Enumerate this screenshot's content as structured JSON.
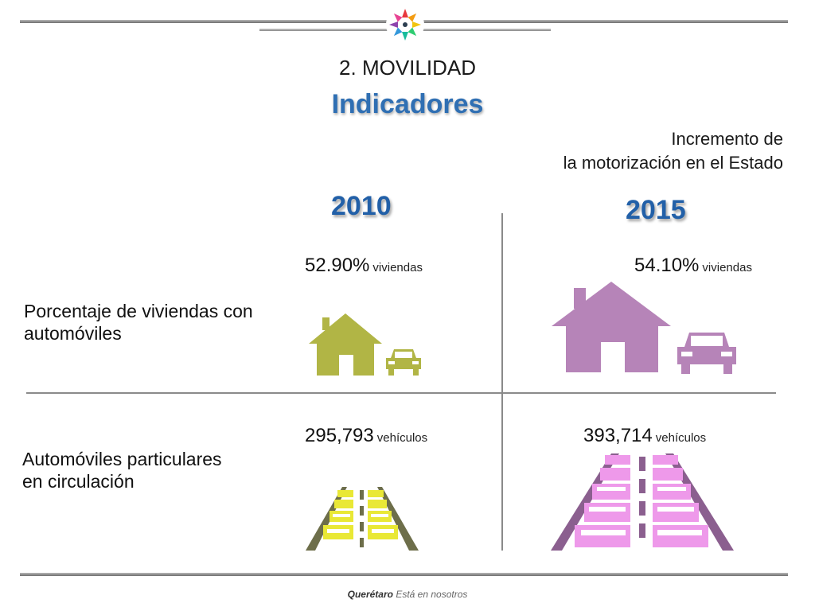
{
  "header": {
    "section": "2. MOVILIDAD",
    "title": "Indicadores",
    "subtitle_line1": "Incremento de",
    "subtitle_line2": "la motorización en el Estado"
  },
  "years": {
    "left": "2010",
    "right": "2015"
  },
  "rows": [
    {
      "label_line1": "Porcentaje de viviendas con",
      "label_line2": "automóviles",
      "value_2010": "52.90%",
      "unit_2010": "viviendas",
      "value_2015": "54.10%",
      "unit_2015": "viviendas"
    },
    {
      "label_line1": "Automóviles particulares",
      "label_line2": "en circulación",
      "value_2010": "295,793",
      "unit_2010": "vehículos",
      "value_2015": "393,714",
      "unit_2015": "vehículos"
    }
  ],
  "colors": {
    "olive": "#b1b545",
    "pink": "#b684b8",
    "yellow": "#e9e836",
    "light_pink": "#ee99ea",
    "blue": "#2f6fb3"
  },
  "icons": [
    "logo-flower-icon",
    "house-icon",
    "car-icon",
    "traffic-road-icon"
  ],
  "footer": {
    "brand": "Querétaro",
    "tagline": "Está en nosotros"
  }
}
